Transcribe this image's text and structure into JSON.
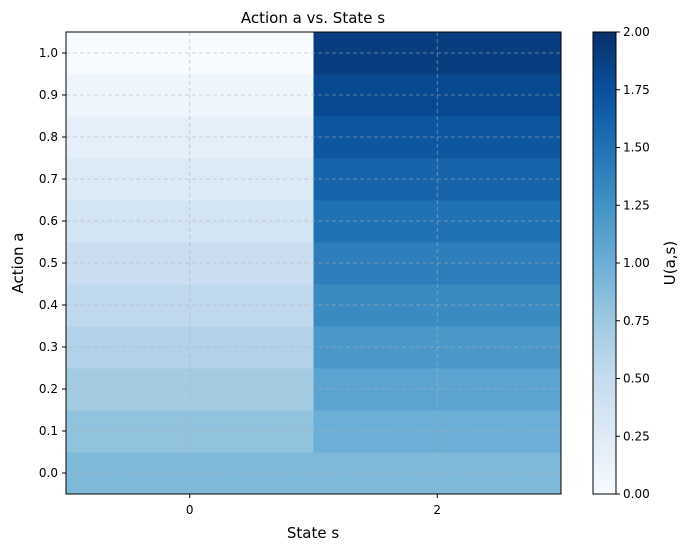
{
  "chart_data": {
    "type": "heatmap",
    "title": "Action a vs. State s",
    "xlabel": "State s",
    "ylabel": "Action a",
    "colorbar_label": "U(a,s)",
    "colormap": "Blues",
    "x_tick_values": [
      0,
      2
    ],
    "x_tick_labels": [
      "0",
      "2"
    ],
    "xlim": [
      -1,
      3
    ],
    "ylim": [
      -0.05,
      1.05
    ],
    "y_tick_values": [
      0.0,
      0.1,
      0.2,
      0.3,
      0.4,
      0.5,
      0.6,
      0.7,
      0.8,
      0.9,
      1.0
    ],
    "y_tick_labels": [
      "0.0",
      "0.1",
      "0.2",
      "0.3",
      "0.4",
      "0.5",
      "0.6",
      "0.7",
      "0.8",
      "0.9",
      "1.0"
    ],
    "colorbar_range": [
      0,
      2
    ],
    "colorbar_tick_values": [
      0,
      0.25,
      0.5,
      0.75,
      1.0,
      1.25,
      1.5,
      1.75,
      2.0
    ],
    "colorbar_tick_labels": [
      "0.00",
      "0.25",
      "0.50",
      "0.75",
      "1.00",
      "1.25",
      "1.50",
      "1.75",
      "2.00"
    ],
    "grid": true,
    "state_bins": [
      {
        "state": 0,
        "x_from": -1,
        "x_to": 1
      },
      {
        "state": 2,
        "x_from": 1,
        "x_to": 3
      }
    ],
    "actions": [
      0.0,
      0.1,
      0.2,
      0.3,
      0.4,
      0.5,
      0.6,
      0.7,
      0.8,
      0.9,
      1.0
    ],
    "values": [
      [
        0.9,
        0.9
      ],
      [
        0.81,
        1.0
      ],
      [
        0.72,
        1.1
      ],
      [
        0.63,
        1.2
      ],
      [
        0.54,
        1.3
      ],
      [
        0.45,
        1.4
      ],
      [
        0.36,
        1.5
      ],
      [
        0.27,
        1.6
      ],
      [
        0.18,
        1.7
      ],
      [
        0.09,
        1.8
      ],
      [
        0.0,
        1.9
      ]
    ]
  }
}
